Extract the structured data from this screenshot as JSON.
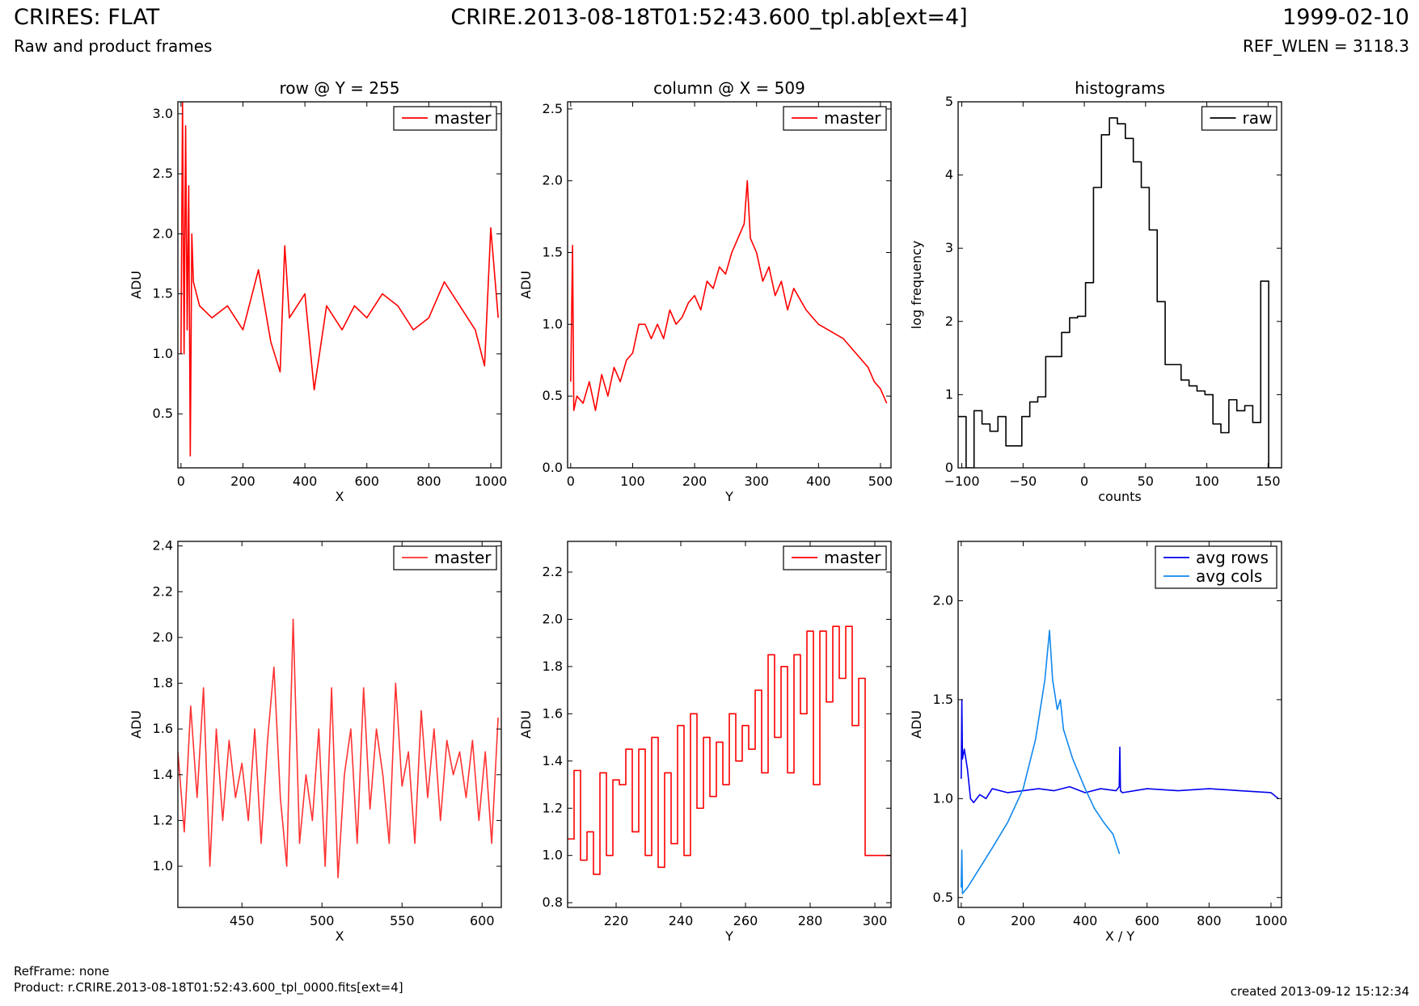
{
  "header": {
    "title_left": "CRIRES: FLAT",
    "subtitle_left": "Raw and product frames",
    "title_center": "CRIRE.2013-08-18T01:52:43.600_tpl.ab[ext=4]",
    "title_right": "1999-02-10",
    "subtitle_right": "REF_WLEN = 3118.3"
  },
  "footer": {
    "ref_frame": "RefFrame: none",
    "product": "Product: r.CRIRE.2013-08-18T01:52:43.600_tpl_0000.fits[ext=4]",
    "created": "created 2013-09-12 15:12:34"
  },
  "chart_data": [
    {
      "id": "row",
      "type": "line",
      "title": "row @ Y = 255",
      "xlabel": "X",
      "ylabel": "ADU",
      "xlim": [
        -10,
        1034
      ],
      "ylim": [
        0.05,
        3.1
      ],
      "xticks": [
        0,
        200,
        400,
        600,
        800,
        1000
      ],
      "yticks": [
        0.5,
        1.0,
        1.5,
        2.0,
        2.5,
        3.0
      ],
      "ytick_labels": [
        "0.5",
        "1.0",
        "1.5",
        "2.0",
        "2.5",
        "3.0"
      ],
      "legend_position": "top-right",
      "series": [
        {
          "name": "master",
          "color": "#ff0000",
          "x": [
            0,
            5,
            10,
            15,
            20,
            25,
            30,
            35,
            40,
            60,
            100,
            150,
            200,
            250,
            290,
            320,
            335,
            350,
            400,
            430,
            470,
            520,
            560,
            600,
            650,
            700,
            750,
            800,
            850,
            900,
            950,
            980,
            1000,
            1024
          ],
          "y": [
            1.0,
            3.1,
            1.0,
            2.9,
            1.2,
            2.4,
            0.15,
            2.0,
            1.6,
            1.4,
            1.3,
            1.4,
            1.2,
            1.7,
            1.1,
            0.85,
            1.9,
            1.3,
            1.5,
            0.7,
            1.4,
            1.2,
            1.4,
            1.3,
            1.5,
            1.4,
            1.2,
            1.3,
            1.6,
            1.4,
            1.2,
            0.9,
            2.05,
            1.3
          ]
        }
      ]
    },
    {
      "id": "column",
      "type": "line",
      "title": "column @ X = 509",
      "xlabel": "Y",
      "ylabel": "ADU",
      "xlim": [
        -5,
        517
      ],
      "ylim": [
        0.0,
        2.55
      ],
      "xticks": [
        0,
        100,
        200,
        300,
        400,
        500
      ],
      "yticks": [
        0.0,
        0.5,
        1.0,
        1.5,
        2.0,
        2.5
      ],
      "ytick_labels": [
        "0.0",
        "0.5",
        "1.0",
        "1.5",
        "2.0",
        "2.5"
      ],
      "legend_position": "top-right",
      "series": [
        {
          "name": "master",
          "color": "#ff0000",
          "x": [
            0,
            3,
            5,
            10,
            20,
            30,
            40,
            50,
            60,
            70,
            80,
            90,
            100,
            110,
            120,
            130,
            140,
            150,
            160,
            170,
            180,
            190,
            200,
            210,
            220,
            230,
            240,
            250,
            260,
            270,
            280,
            285,
            290,
            300,
            310,
            320,
            330,
            340,
            350,
            360,
            380,
            400,
            420,
            440,
            460,
            470,
            480,
            490,
            500,
            510
          ],
          "y": [
            0.6,
            1.55,
            0.4,
            0.5,
            0.45,
            0.6,
            0.4,
            0.65,
            0.5,
            0.7,
            0.6,
            0.75,
            0.8,
            1.0,
            1.0,
            0.9,
            1.0,
            0.9,
            1.1,
            1.0,
            1.05,
            1.15,
            1.2,
            1.1,
            1.3,
            1.25,
            1.4,
            1.35,
            1.5,
            1.6,
            1.7,
            2.0,
            1.6,
            1.5,
            1.3,
            1.4,
            1.2,
            1.3,
            1.1,
            1.25,
            1.1,
            1.0,
            0.95,
            0.9,
            0.8,
            0.75,
            0.7,
            0.6,
            0.55,
            0.45
          ]
        }
      ]
    },
    {
      "id": "histograms",
      "type": "line",
      "title": "histograms",
      "xlabel": "counts",
      "ylabel": "log frequency",
      "xlim": [
        -103,
        161
      ],
      "ylim": [
        0,
        5
      ],
      "xticks": [
        -100,
        -50,
        0,
        50,
        100,
        150
      ],
      "xtick_labels": [
        "−100",
        "−50",
        "0",
        "50",
        "100",
        "150"
      ],
      "yticks": [
        0,
        1,
        2,
        3,
        4,
        5
      ],
      "ytick_labels": [
        "0",
        "1",
        "2",
        "3",
        "4",
        "5"
      ],
      "legend_position": "top-right",
      "series": [
        {
          "name": "raw",
          "color": "#000000",
          "step": true,
          "bin_width": 6.5,
          "x": [
            -103,
            -96.5,
            -90,
            -83.5,
            -77,
            -70.5,
            -64,
            -57.5,
            -51,
            -44.5,
            -38,
            -31.5,
            -25,
            -18.5,
            -12,
            -5.5,
            1,
            7.5,
            14,
            20.5,
            27,
            33.5,
            40,
            46.5,
            53,
            59.5,
            66,
            72.5,
            79,
            85.5,
            92,
            98.5,
            105,
            111.5,
            118,
            124.5,
            131,
            137.5,
            144,
            150.5,
            157
          ],
          "y": [
            0.7,
            0.0,
            0.78,
            0.6,
            0.5,
            0.7,
            0.3,
            0.3,
            0.7,
            0.9,
            0.97,
            1.52,
            1.52,
            1.85,
            2.05,
            2.07,
            2.53,
            3.83,
            4.55,
            4.78,
            4.7,
            4.5,
            4.18,
            3.83,
            3.25,
            2.27,
            1.41,
            1.41,
            1.2,
            1.12,
            1.05,
            1.0,
            0.6,
            0.48,
            0.93,
            0.78,
            0.85,
            0.62,
            2.55,
            0.0,
            0.0
          ]
        }
      ]
    },
    {
      "id": "row-zoom",
      "type": "line",
      "title": "",
      "xlabel": "X",
      "ylabel": "ADU",
      "xlim": [
        410,
        612
      ],
      "ylim": [
        0.82,
        2.42
      ],
      "xticks": [
        450,
        500,
        550,
        600
      ],
      "yticks": [
        1.0,
        1.2,
        1.4,
        1.6,
        1.8,
        2.0,
        2.2,
        2.4
      ],
      "ytick_labels": [
        "1.0",
        "1.2",
        "1.4",
        "1.6",
        "1.8",
        "2.0",
        "2.2",
        "2.4"
      ],
      "legend_position": "top-right",
      "series": [
        {
          "name": "master",
          "color": "#ff3333",
          "x": [
            410,
            414,
            418,
            422,
            426,
            430,
            434,
            438,
            442,
            446,
            450,
            454,
            458,
            462,
            466,
            470,
            474,
            478,
            482,
            486,
            490,
            494,
            498,
            502,
            506,
            510,
            514,
            518,
            522,
            526,
            530,
            534,
            538,
            542,
            546,
            550,
            554,
            558,
            562,
            566,
            570,
            574,
            578,
            582,
            586,
            590,
            594,
            598,
            602,
            606,
            610
          ],
          "y": [
            1.5,
            1.15,
            1.7,
            1.3,
            1.78,
            1.0,
            1.6,
            1.2,
            1.55,
            1.3,
            1.45,
            1.2,
            1.6,
            1.1,
            1.55,
            1.87,
            1.3,
            1.0,
            2.08,
            1.1,
            1.4,
            1.2,
            1.6,
            1.0,
            1.78,
            0.95,
            1.4,
            1.6,
            1.1,
            1.78,
            1.25,
            1.6,
            1.4,
            1.1,
            1.8,
            1.35,
            1.5,
            1.1,
            1.68,
            1.3,
            1.6,
            1.2,
            1.55,
            1.4,
            1.5,
            1.3,
            1.55,
            1.2,
            1.5,
            1.1,
            1.65
          ]
        }
      ]
    },
    {
      "id": "column-zoom",
      "type": "line",
      "title": "",
      "xlabel": "Y",
      "ylabel": "ADU",
      "xlim": [
        205,
        305
      ],
      "ylim": [
        0.78,
        2.33
      ],
      "xticks": [
        220,
        240,
        260,
        280,
        300
      ],
      "yticks": [
        0.8,
        1.0,
        1.2,
        1.4,
        1.6,
        1.8,
        2.0,
        2.2
      ],
      "ytick_labels": [
        "0.8",
        "1.0",
        "1.2",
        "1.4",
        "1.6",
        "1.8",
        "2.0",
        "2.2"
      ],
      "legend_position": "top-right",
      "series": [
        {
          "name": "master",
          "color": "#ff0000",
          "step": true,
          "x": [
            205,
            207,
            209,
            211,
            213,
            215,
            217,
            219,
            221,
            223,
            225,
            227,
            229,
            231,
            233,
            235,
            237,
            239,
            241,
            243,
            245,
            247,
            249,
            251,
            253,
            255,
            257,
            259,
            261,
            263,
            265,
            267,
            269,
            271,
            273,
            275,
            277,
            279,
            281,
            283,
            285,
            287,
            289,
            291,
            293,
            295,
            297,
            299,
            301,
            303,
            305
          ],
          "y": [
            1.07,
            1.36,
            0.98,
            1.1,
            0.92,
            1.35,
            1.0,
            1.32,
            1.3,
            1.45,
            1.1,
            1.45,
            1.0,
            1.5,
            0.95,
            1.35,
            1.05,
            1.55,
            1.0,
            1.6,
            1.2,
            1.5,
            1.25,
            1.48,
            1.3,
            1.6,
            1.4,
            1.55,
            1.45,
            1.7,
            1.35,
            1.85,
            1.5,
            1.8,
            1.35,
            1.85,
            1.6,
            1.95,
            1.3,
            1.95,
            1.65,
            1.97,
            1.75,
            1.97,
            1.55,
            1.75,
            1.0,
            1.0,
            1.0,
            1.0,
            1.0
          ]
        }
      ]
    },
    {
      "id": "averages",
      "type": "line",
      "title": "",
      "xlabel": "X / Y",
      "ylabel": "ADU",
      "xlim": [
        -10,
        1034
      ],
      "ylim": [
        0.45,
        2.3
      ],
      "xticks": [
        0,
        200,
        400,
        600,
        800,
        1000
      ],
      "yticks": [
        0.5,
        1.0,
        1.5,
        2.0
      ],
      "ytick_labels": [
        "0.5",
        "1.0",
        "1.5",
        "2.0"
      ],
      "legend_position": "top-right",
      "series": [
        {
          "name": "avg rows",
          "color": "#0000ee",
          "x": [
            0,
            2,
            4,
            10,
            20,
            30,
            40,
            60,
            80,
            100,
            150,
            200,
            250,
            300,
            350,
            400,
            450,
            500,
            510,
            512,
            514,
            520,
            600,
            700,
            800,
            900,
            1000,
            1024
          ],
          "y": [
            1.1,
            1.5,
            1.2,
            1.25,
            1.15,
            1.0,
            0.98,
            1.02,
            1.0,
            1.05,
            1.03,
            1.04,
            1.05,
            1.04,
            1.06,
            1.03,
            1.05,
            1.04,
            1.06,
            1.26,
            1.04,
            1.03,
            1.05,
            1.04,
            1.05,
            1.04,
            1.03,
            1.0
          ]
        },
        {
          "name": "avg cols",
          "color": "#1188ee",
          "x": [
            0,
            2,
            4,
            20,
            60,
            100,
            150,
            200,
            240,
            270,
            285,
            295,
            310,
            320,
            330,
            360,
            400,
            430,
            460,
            490,
            511
          ],
          "y": [
            0.55,
            0.74,
            0.52,
            0.55,
            0.65,
            0.75,
            0.88,
            1.05,
            1.3,
            1.6,
            1.85,
            1.6,
            1.45,
            1.5,
            1.35,
            1.2,
            1.05,
            0.95,
            0.88,
            0.82,
            0.72
          ]
        }
      ]
    }
  ]
}
